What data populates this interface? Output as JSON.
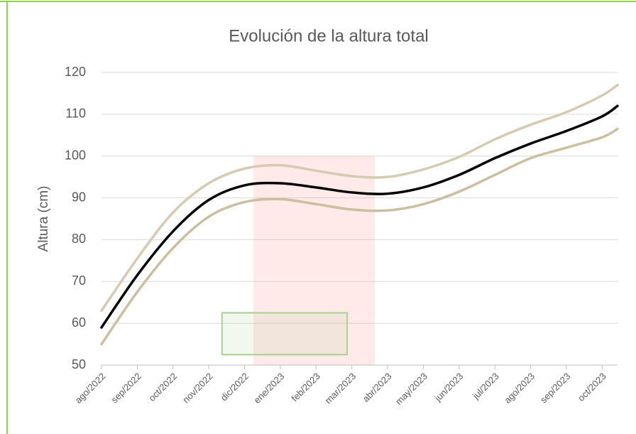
{
  "chart_data": {
    "type": "line",
    "title": "Evolución de la altura total",
    "y_label": "Altura (cm)",
    "x": [
      0,
      1,
      2,
      3,
      4,
      5,
      6,
      7,
      8,
      9,
      10,
      11,
      12,
      13,
      14,
      14.43
    ],
    "xlim": [
      0,
      14.43
    ],
    "xticks": [
      {
        "value": 0,
        "label": "ago/2022"
      },
      {
        "value": 1,
        "label": "sep/2022"
      },
      {
        "value": 2,
        "label": "oct/2022"
      },
      {
        "value": 3,
        "label": "nov/2022"
      },
      {
        "value": 4,
        "label": "dic/2022"
      },
      {
        "value": 5,
        "label": "ene/2023"
      },
      {
        "value": 6,
        "label": "feb/2023"
      },
      {
        "value": 7,
        "label": "mar/2023"
      },
      {
        "value": 8,
        "label": "abr/2023"
      },
      {
        "value": 9,
        "label": "may/2023"
      },
      {
        "value": 10,
        "label": "jun/2023"
      },
      {
        "value": 11,
        "label": "jul/2023"
      },
      {
        "value": 12,
        "label": "ago/2023"
      },
      {
        "value": 13,
        "label": "sep/2023"
      },
      {
        "value": 14,
        "label": "oct/2023"
      }
    ],
    "ylim": [
      50,
      120
    ],
    "yticks": [
      50,
      60,
      70,
      80,
      90,
      100,
      110,
      120
    ],
    "grid": true,
    "series": [
      {
        "color": "#d5cbb0",
        "width": 3.5,
        "values": [
          63,
          75.5,
          86.5,
          93.5,
          97,
          97.8,
          96.5,
          95.2,
          95,
          96.8,
          99.8,
          104,
          107.5,
          110.5,
          114.5,
          117
        ]
      },
      {
        "color": "#cbbfa0",
        "width": 3.5,
        "values": [
          55,
          67.5,
          78,
          85.5,
          89,
          89.7,
          88.5,
          87.2,
          87,
          88.5,
          91.5,
          95.5,
          99.5,
          102,
          104.5,
          106.5
        ]
      },
      {
        "color": "#000000",
        "width": 3.5,
        "values": [
          59,
          71.5,
          82,
          89.5,
          93,
          93.5,
          92.5,
          91.3,
          91,
          92.5,
          95.5,
          99.5,
          103,
          106,
          109.5,
          112
        ]
      }
    ],
    "regions": [
      {
        "x": [
          4.25,
          7.64
        ],
        "y": [
          50,
          100
        ],
        "fill": "#ff9999",
        "opacity": 0.22,
        "stroke": "none"
      },
      {
        "x": [
          3.37,
          6.87
        ],
        "y": [
          52.5,
          62.5
        ],
        "fill": "#a9d18e",
        "opacity": 0.15,
        "stroke": "#a9d18e"
      }
    ]
  }
}
